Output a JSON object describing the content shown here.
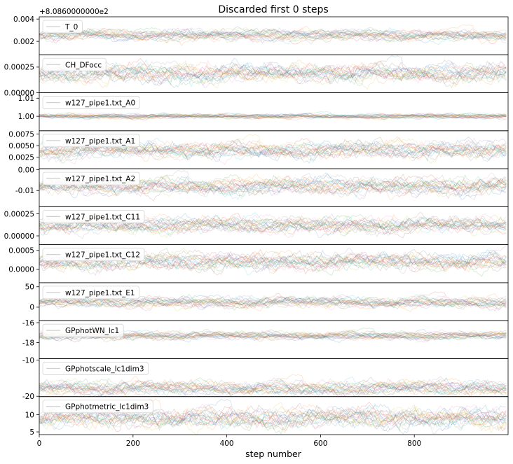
{
  "chart_data": {
    "type": "line",
    "title": "Discarded first 0 steps",
    "xlabel": "step number",
    "xlim": [
      0,
      1000
    ],
    "x_ticks": [
      "0",
      "200",
      "400",
      "600",
      "800"
    ],
    "x_tick_values": [
      0,
      200,
      400,
      600,
      800
    ],
    "n_walkers": 22,
    "n_steps": 1000,
    "grid": false,
    "legend_placement": "upper-left",
    "offset_label": "+8.0860000000e2",
    "walker_colors": [
      "#1f77b4",
      "#ff7f0e",
      "#2ca02c",
      "#d62728",
      "#9467bd",
      "#8c564b",
      "#e377c2",
      "#7f7f7f",
      "#bcbd22",
      "#17becf"
    ],
    "panels": [
      {
        "legend": "T_0",
        "ylim": [
          0.0008,
          0.0042
        ],
        "y_ticks": [
          "0.004",
          "0.002"
        ],
        "y_tick_values": [
          0.004,
          0.002
        ],
        "center": 0.00255,
        "spread": 0.00022
      },
      {
        "legend": "CH_DFocc",
        "ylim": [
          0.0,
          0.00037
        ],
        "y_ticks": [
          "0.00025",
          "0.00000"
        ],
        "y_tick_values": [
          0.00025,
          0.0
        ],
        "center": 0.00019,
        "spread": 4e-05
      },
      {
        "legend": "w127_pipe1.txt_A0",
        "ylim": [
          0.992,
          1.013
        ],
        "y_ticks": [
          "1.01",
          "1.00"
        ],
        "y_tick_values": [
          1.01,
          1.0
        ],
        "center": 1.0,
        "spread": 0.0006
      },
      {
        "legend": "w127_pipe1.txt_A1",
        "ylim": [
          0.0,
          0.0082
        ],
        "y_ticks": [
          "0.0075",
          "0.0050",
          "0.0025"
        ],
        "y_tick_values": [
          0.0075,
          0.005,
          0.0025
        ],
        "center": 0.004,
        "spread": 0.0008
      },
      {
        "legend": "w127_pipe1.txt_A2",
        "ylim": [
          -0.0178,
          0.0005
        ],
        "y_ticks": [
          "0.00",
          "-0.01"
        ],
        "y_tick_values": [
          0.0,
          -0.01
        ],
        "center": -0.008,
        "spread": 0.0018
      },
      {
        "legend": "w127_pipe1.txt_C11",
        "ylim": [
          -0.0001,
          0.00033
        ],
        "y_ticks": [
          "0.00025",
          "0.00000"
        ],
        "y_tick_values": [
          0.00025,
          0.0
        ],
        "center": 0.00012,
        "spread": 4e-05
      },
      {
        "legend": "w127_pipe1.txt_C12",
        "ylim": [
          -0.00035,
          0.00065
        ],
        "y_ticks": [
          "0.0005",
          "0.0000"
        ],
        "y_tick_values": [
          0.0005,
          0.0
        ],
        "center": 0.0002,
        "spread": 0.0001
      },
      {
        "legend": "w127_pipe1.txt_E1",
        "ylim": [
          -33,
          60
        ],
        "y_ticks": [
          "50",
          "0"
        ],
        "y_tick_values": [
          50,
          0
        ],
        "center": 12,
        "spread": 6
      },
      {
        "legend": "GPphotWN_lc1",
        "ylim": [
          -19.6,
          -15.8
        ],
        "y_ticks": [
          "-16",
          "-18"
        ],
        "y_tick_values": [
          -16,
          -18
        ],
        "center": -17.3,
        "spread": 0.18
      },
      {
        "legend": "GPphotscale_lc1dim3",
        "ylim": [
          -20.1,
          -9.6
        ],
        "y_ticks": [
          "-10",
          "-20"
        ],
        "y_tick_values": [
          -10,
          -20
        ],
        "center": -17.8,
        "spread": 0.9
      },
      {
        "legend": "GPphotmetric_lc1dim3",
        "ylim": [
          4.2,
          15.3
        ],
        "y_ticks": [
          "10",
          "5"
        ],
        "y_tick_values": [
          10,
          5
        ],
        "center": 9.0,
        "spread": 1.3
      }
    ]
  }
}
